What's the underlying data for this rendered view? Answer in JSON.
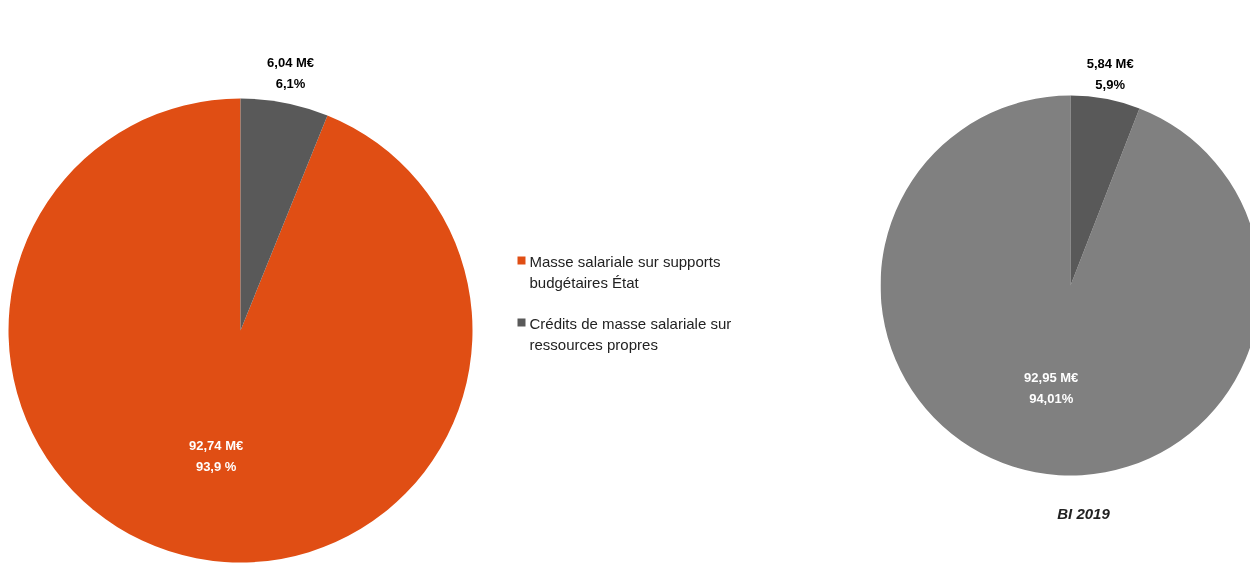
{
  "chart_data": [
    {
      "type": "pie",
      "categories": [
        "Masse salariale sur supports budgétaires État",
        "Crédits de masse salariale sur ressources propres"
      ],
      "values": [
        92.74,
        6.04
      ],
      "colors": [
        "#e04e14",
        "#595959"
      ],
      "value_labels": [
        "92,74 M€\n93,9 %",
        "6,04 M€\n6,1%"
      ],
      "legend": "right"
    },
    {
      "type": "pie",
      "categories": [
        null,
        null
      ],
      "values": [
        92.95,
        5.84
      ],
      "colors": [
        "#808080",
        "#595959"
      ],
      "value_labels": [
        "92,95 M€\n94,01%",
        "5,84 M€\n5,9%"
      ],
      "annotations": [
        "BI 2019"
      ]
    }
  ]
}
